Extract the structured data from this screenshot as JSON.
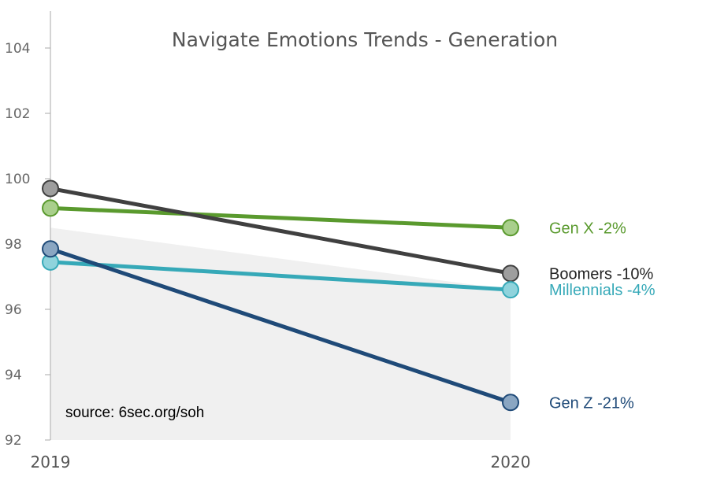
{
  "chart_data": {
    "type": "line",
    "title": "Navigate Emotions Trends - Generation",
    "xlabel": "",
    "ylabel": "",
    "x": [
      "2019",
      "2020"
    ],
    "ylim": [
      92,
      105
    ],
    "yticks": [
      92,
      94,
      96,
      98,
      100,
      102,
      104
    ],
    "grid": false,
    "shaded_band": {
      "from": [
        98.5,
        96.6
      ],
      "to": [
        92,
        92
      ],
      "color": "#f0f0f0"
    },
    "series": [
      {
        "name": "Gen X",
        "label": "Gen X -2%",
        "values": [
          99.1,
          98.5
        ],
        "color": "#5a9a2e",
        "marker_fill": "#a9cf8c"
      },
      {
        "name": "Boomers",
        "label": "Boomers -10%",
        "values": [
          99.7,
          97.1
        ],
        "color": "#404040",
        "marker_fill": "#9e9e9e",
        "label_color": "#222222"
      },
      {
        "name": "Millennials",
        "label": "Millennials -4%",
        "values": [
          97.45,
          96.6
        ],
        "color": "#36a9b8",
        "marker_fill": "#8fd3dc"
      },
      {
        "name": "Gen Z",
        "label": "Gen Z -21%",
        "values": [
          97.85,
          93.15
        ],
        "color": "#1f4a78",
        "marker_fill": "#8aa6c2"
      }
    ],
    "annotations": [
      {
        "text": "source: 6sec.org/soh"
      }
    ]
  }
}
